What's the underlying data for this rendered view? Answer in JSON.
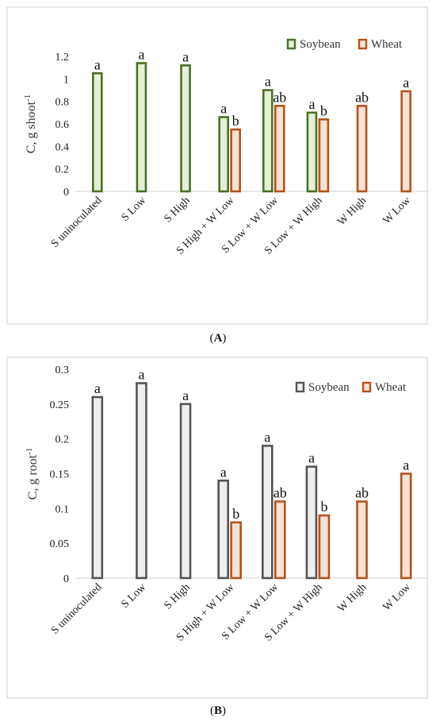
{
  "chart_data": [
    {
      "type": "bar",
      "panel": "A",
      "categories": [
        "S uninoculated",
        "S Low",
        "S High",
        "S High + W Low",
        "S Low + W Low",
        "S Low + W High",
        "W High",
        "W Low"
      ],
      "ylabel": "C, g shoot",
      "ylabel_sup": "-1",
      "ylim": [
        0,
        1.2
      ],
      "yticks": [
        "0",
        "0.2",
        "0.4",
        "0.6",
        "0.8",
        "1",
        "1.2"
      ],
      "legend_position": "top-right",
      "series": [
        {
          "name": "Soybean",
          "color": "#4a7123",
          "fill": "#e6efd8",
          "values": [
            1.05,
            1.14,
            1.12,
            0.66,
            0.9,
            0.7,
            null,
            null
          ],
          "labels": [
            "a",
            "a",
            "a",
            "a",
            "a",
            "a",
            "",
            ""
          ]
        },
        {
          "name": "Wheat",
          "color": "#b5521c",
          "fill": "#f6e3d6",
          "values": [
            null,
            null,
            null,
            0.55,
            0.76,
            0.64,
            0.76,
            0.89
          ],
          "labels": [
            "",
            "",
            "",
            "b",
            "ab",
            "b",
            "ab",
            "a"
          ]
        }
      ]
    },
    {
      "type": "bar",
      "panel": "B",
      "categories": [
        "S uninoculated",
        "S Low",
        "S High",
        "S High + W Low",
        "S Low + W Low",
        "S Low + W High",
        "W High",
        "W Low"
      ],
      "ylabel": "C, g root",
      "ylabel_sup": "-1",
      "ylim": [
        0,
        0.3
      ],
      "yticks": [
        "0",
        "0.05",
        "0.1",
        "0.15",
        "0.2",
        "0.25",
        "0.3"
      ],
      "legend_position": "top-right",
      "series": [
        {
          "name": "Soybean",
          "color": "#545454",
          "fill": "#efefef",
          "values": [
            0.26,
            0.28,
            0.25,
            0.14,
            0.19,
            0.16,
            null,
            null
          ],
          "labels": [
            "a",
            "a",
            "a",
            "a",
            "a",
            "a",
            "",
            ""
          ]
        },
        {
          "name": "Wheat",
          "color": "#b5521c",
          "fill": "#f6e3d6",
          "values": [
            null,
            null,
            null,
            0.08,
            0.11,
            0.09,
            0.11,
            0.15
          ],
          "labels": [
            "",
            "",
            "",
            "b",
            "ab",
            "b",
            "ab",
            "a"
          ]
        }
      ]
    }
  ],
  "panel_labels": {
    "a": {
      "open": "(",
      "letter": "A",
      "close": ")"
    },
    "b": {
      "open": "(",
      "letter": "B",
      "close": ")"
    }
  }
}
